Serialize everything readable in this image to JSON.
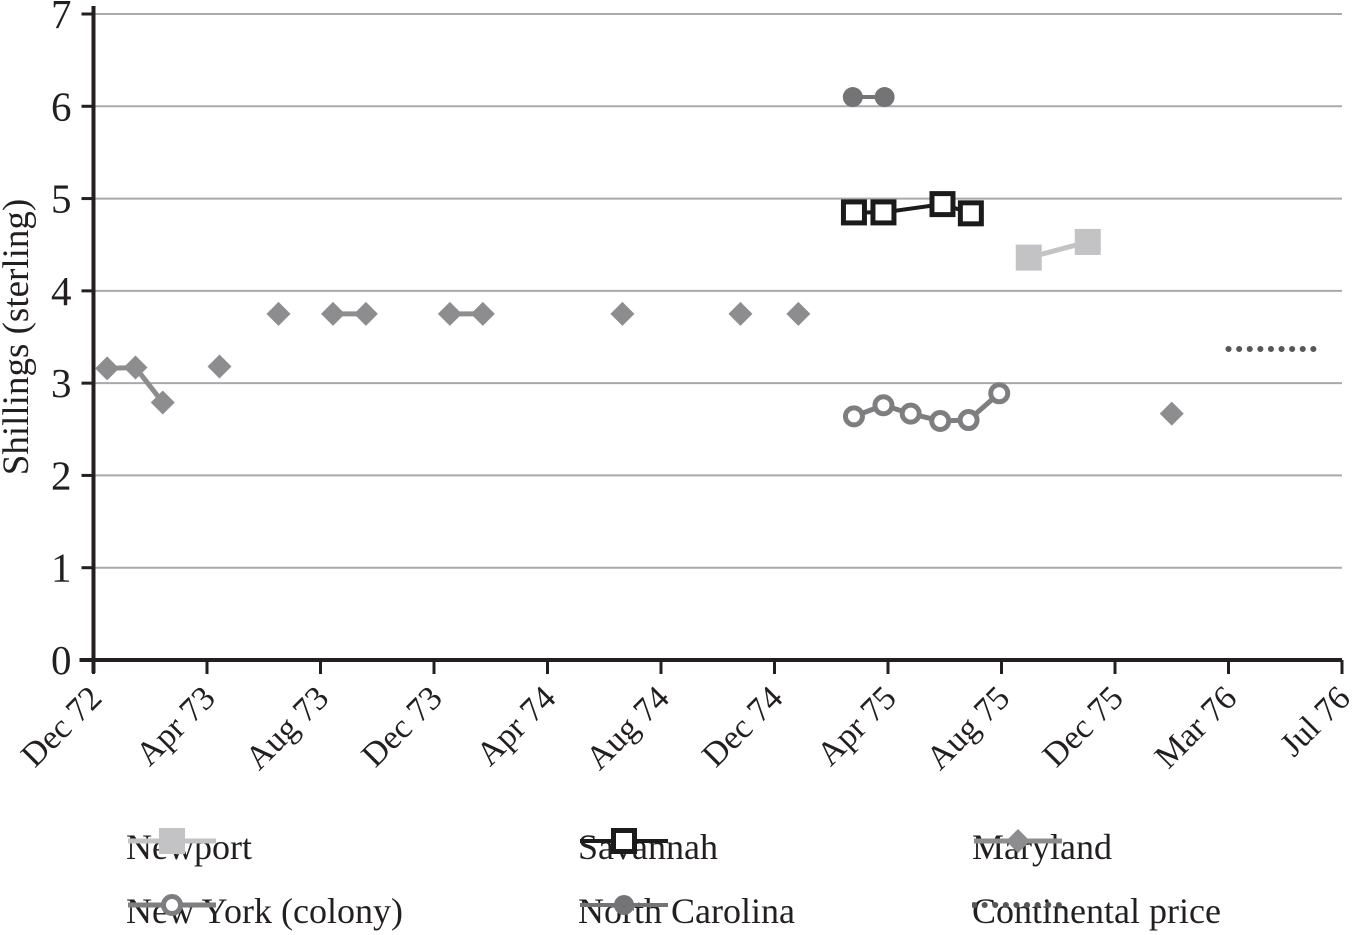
{
  "chart_data": {
    "type": "line",
    "title": "",
    "ylabel": "Shillings (sterling)",
    "ylim": [
      0,
      7
    ],
    "yticks": [
      0,
      1,
      2,
      3,
      4,
      5,
      6,
      7
    ],
    "x_tick_labels": [
      "Dec 72",
      "Apr 73",
      "Aug 73",
      "Dec 73",
      "Apr 74",
      "Aug 74",
      "Dec 74",
      "Apr 75",
      "Aug 75",
      "Dec 75",
      "Mar 76",
      "Jul 76"
    ],
    "x_unit": "axis tick index (0 = Dec 72, each tick is one axis interval)",
    "grid": "horizontal gridlines at each integer",
    "legend_position": "bottom, 3 columns x 2 rows",
    "series": [
      {
        "name": "Newport",
        "marker": "square-filled",
        "color": "#c3c3c5",
        "line_width": 5,
        "segments": [
          [
            [
              8.24,
              4.36
            ],
            [
              8.76,
              4.53
            ]
          ]
        ]
      },
      {
        "name": "Savannah",
        "marker": "square-open",
        "color": "#1b1b1b",
        "line_width": 4,
        "segments": [
          [
            [
              6.7,
              4.85
            ],
            [
              6.96,
              4.85
            ],
            [
              7.48,
              4.94
            ],
            [
              7.73,
              4.84
            ]
          ]
        ]
      },
      {
        "name": "Maryland",
        "marker": "diamond-filled",
        "color": "#8d8d8f",
        "line_width": 5,
        "segments": [
          [
            [
              0.12,
              3.16
            ],
            [
              0.37,
              3.17
            ],
            [
              0.61,
              2.79
            ]
          ],
          [
            [
              1.11,
              3.18
            ]
          ],
          [
            [
              1.63,
              3.75
            ]
          ],
          [
            [
              2.11,
              3.75
            ],
            [
              2.4,
              3.75
            ]
          ],
          [
            [
              3.14,
              3.75
            ],
            [
              3.43,
              3.75
            ]
          ],
          [
            [
              4.66,
              3.75
            ]
          ],
          [
            [
              5.7,
              3.75
            ]
          ],
          [
            [
              6.21,
              3.75
            ]
          ],
          [
            [
              9.5,
              2.67
            ]
          ]
        ]
      },
      {
        "name": "New York (colony)",
        "marker": "circle-open",
        "color": "#7e7e81",
        "line_width": 5,
        "segments": [
          [
            [
              6.7,
              2.64
            ],
            [
              6.96,
              2.76
            ],
            [
              7.2,
              2.67
            ],
            [
              7.46,
              2.59
            ],
            [
              7.71,
              2.6
            ],
            [
              7.98,
              2.89
            ]
          ]
        ]
      },
      {
        "name": "North Carolina",
        "marker": "circle-filled",
        "color": "#747477",
        "line_width": 4,
        "segments": [
          [
            [
              6.69,
              6.1
            ],
            [
              6.97,
              6.1
            ]
          ]
        ]
      },
      {
        "name": "Continental price",
        "marker": "dotted-line",
        "color": "#57575a",
        "line_width": 6,
        "segments": [
          [
            [
              10.0,
              3.37
            ],
            [
              10.78,
              3.37
            ]
          ]
        ]
      }
    ],
    "layout": {
      "axis_color": "#231f20",
      "gridline_color": "#a9a9ab",
      "background": "#ffffff"
    }
  }
}
